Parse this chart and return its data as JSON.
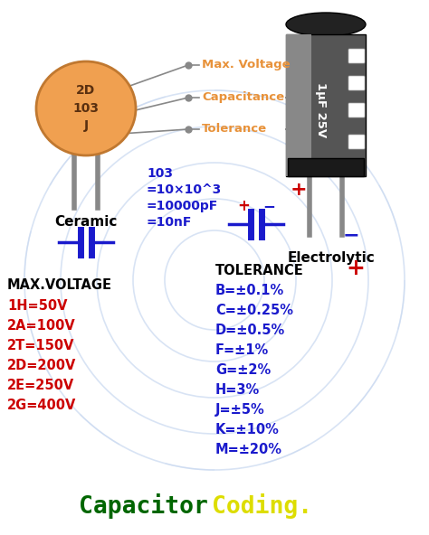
{
  "bg_color": "#ffffff",
  "watermark_color": "#c8d8f0",
  "title_green": "Capacitor",
  "title_yellow": "Coding.",
  "title_fontsize": 20,
  "ceramic_label": "2D\n103\nJ",
  "ceramic_color": "#F0A050",
  "ceramic_edge_color": "#c07830",
  "ceramic_text_color": "#5a3010",
  "ceramic_bottom_label": "Ceramic",
  "electrolytic_label": "1μF 25V",
  "arrow_labels": [
    {
      "text": "Max. Voltage",
      "color": "#E8923A"
    },
    {
      "text": "Capacitance",
      "color": "#E8923A"
    },
    {
      "text": "Tolerance",
      "color": "#E8923A"
    }
  ],
  "code_block_lines": [
    "103",
    "=10×10^3",
    "=10000pF",
    "=10nF"
  ],
  "code_block_color": "#1a1acc",
  "max_voltage_title": "MAX.VOLTAGE",
  "max_voltage_title_color": "#000000",
  "max_voltage_entries": [
    {
      "label": "1H=50V",
      "color": "#cc0000"
    },
    {
      "label": "2A=100V",
      "color": "#cc0000"
    },
    {
      "label": "2T=150V",
      "color": "#cc0000"
    },
    {
      "label": "2D=200V",
      "color": "#cc0000"
    },
    {
      "label": "2E=250V",
      "color": "#cc0000"
    },
    {
      "label": "2G=400V",
      "color": "#cc0000"
    }
  ],
  "tolerance_title": "TOLERANCE",
  "tolerance_title_color": "#000000",
  "tolerance_entries": [
    {
      "label": "B=±0.1%",
      "color": "#1a1acc"
    },
    {
      "label": "C=±0.25%",
      "color": "#1a1acc"
    },
    {
      "label": "D=±0.5%",
      "color": "#1a1acc"
    },
    {
      "label": "F=±1%",
      "color": "#1a1acc"
    },
    {
      "label": "G=±2%",
      "color": "#1a1acc"
    },
    {
      "label": "H=3%",
      "color": "#1a1acc"
    },
    {
      "label": "J=±5%",
      "color": "#1a1acc"
    },
    {
      "label": "K=±10%",
      "color": "#1a1acc"
    },
    {
      "label": "M=±20%",
      "color": "#1a1acc"
    }
  ],
  "plus_color": "#cc0000",
  "minus_color": "#1a1acc",
  "symbol_color": "#1a1acc",
  "line_color": "#888888",
  "lead_color": "#888888",
  "cap_top_color": "#222222",
  "cap_body_color": "#555555",
  "cap_body_light": "#888888",
  "cap_stripe_color": "#bbbbbb"
}
